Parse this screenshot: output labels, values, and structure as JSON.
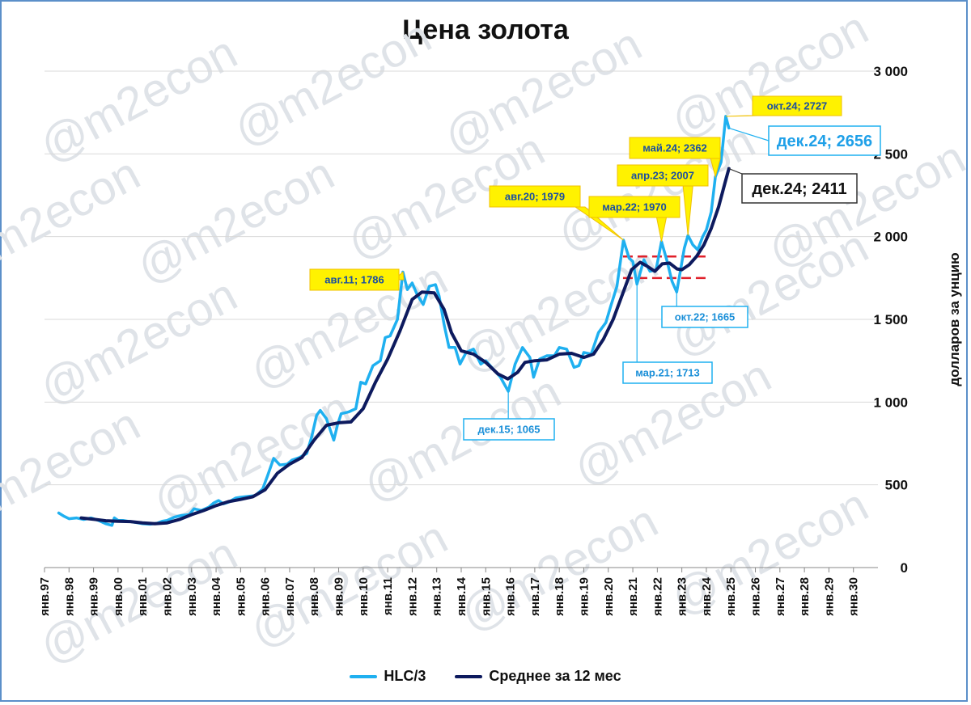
{
  "chart_data": {
    "type": "line",
    "title": "Цена золота",
    "ylabel": "долларов за унцию",
    "ylim": [
      0,
      3000
    ],
    "yticks": [
      {
        "value": 0,
        "label": "0"
      },
      {
        "value": 500,
        "label": "500"
      },
      {
        "value": 1000,
        "label": "1 000"
      },
      {
        "value": 1500,
        "label": "1 500"
      },
      {
        "value": 2000,
        "label": "2 000"
      },
      {
        "value": 2500,
        "label": "2 500"
      },
      {
        "value": 3000,
        "label": "3 000"
      }
    ],
    "xticks": [
      "янв.97",
      "янв.98",
      "янв.99",
      "янв.00",
      "янв.01",
      "янв.02",
      "янв.03",
      "янв.04",
      "янв.05",
      "янв.06",
      "янв.07",
      "янв.08",
      "янв.09",
      "янв.10",
      "янв.11",
      "янв.12",
      "янв.13",
      "янв.14",
      "янв.15",
      "янв.16",
      "янв.17",
      "янв.18",
      "янв.19",
      "янв.20",
      "янв.21",
      "янв.22",
      "янв.23",
      "янв.24",
      "янв.25",
      "янв.26",
      "янв.27",
      "янв.28",
      "янв.29",
      "янв.30"
    ],
    "grid": true,
    "legend_position": "bottom",
    "series": [
      {
        "name": "HLC/3",
        "color": "#1fb0f0",
        "points": [
          [
            1997.58,
            330
          ],
          [
            1997.8,
            310
          ],
          [
            1998.0,
            295
          ],
          [
            1998.3,
            300
          ],
          [
            1998.6,
            290
          ],
          [
            1998.9,
            300
          ],
          [
            1999.2,
            285
          ],
          [
            1999.5,
            265
          ],
          [
            1999.75,
            255
          ],
          [
            1999.85,
            300
          ],
          [
            2000.0,
            285
          ],
          [
            2000.2,
            285
          ],
          [
            2000.4,
            280
          ],
          [
            2000.6,
            275
          ],
          [
            2000.8,
            270
          ],
          [
            2001.0,
            265
          ],
          [
            2001.3,
            262
          ],
          [
            2001.6,
            268
          ],
          [
            2001.8,
            280
          ],
          [
            2002.0,
            285
          ],
          [
            2002.3,
            305
          ],
          [
            2002.6,
            315
          ],
          [
            2002.9,
            320
          ],
          [
            2003.1,
            355
          ],
          [
            2003.4,
            345
          ],
          [
            2003.7,
            365
          ],
          [
            2003.9,
            390
          ],
          [
            2004.1,
            405
          ],
          [
            2004.3,
            385
          ],
          [
            2004.5,
            395
          ],
          [
            2004.8,
            420
          ],
          [
            2005.0,
            425
          ],
          [
            2005.3,
            430
          ],
          [
            2005.6,
            435
          ],
          [
            2005.9,
            475
          ],
          [
            2006.1,
            555
          ],
          [
            2006.35,
            660
          ],
          [
            2006.6,
            620
          ],
          [
            2006.9,
            625
          ],
          [
            2007.1,
            650
          ],
          [
            2007.4,
            665
          ],
          [
            2007.7,
            690
          ],
          [
            2007.9,
            790
          ],
          [
            2008.1,
            920
          ],
          [
            2008.25,
            950
          ],
          [
            2008.5,
            900
          ],
          [
            2008.8,
            770
          ],
          [
            2008.95,
            860
          ],
          [
            2009.1,
            930
          ],
          [
            2009.4,
            940
          ],
          [
            2009.7,
            960
          ],
          [
            2009.9,
            1120
          ],
          [
            2010.1,
            1110
          ],
          [
            2010.4,
            1220
          ],
          [
            2010.7,
            1250
          ],
          [
            2010.9,
            1390
          ],
          [
            2011.1,
            1400
          ],
          [
            2011.4,
            1500
          ],
          [
            2011.62,
            1786
          ],
          [
            2011.8,
            1680
          ],
          [
            2012.0,
            1720
          ],
          [
            2012.2,
            1650
          ],
          [
            2012.45,
            1590
          ],
          [
            2012.7,
            1700
          ],
          [
            2012.95,
            1710
          ],
          [
            2013.1,
            1640
          ],
          [
            2013.3,
            1470
          ],
          [
            2013.5,
            1330
          ],
          [
            2013.75,
            1330
          ],
          [
            2013.95,
            1230
          ],
          [
            2014.2,
            1300
          ],
          [
            2014.5,
            1320
          ],
          [
            2014.8,
            1230
          ],
          [
            2015.0,
            1250
          ],
          [
            2015.3,
            1200
          ],
          [
            2015.6,
            1150
          ],
          [
            2015.92,
            1065
          ],
          [
            2016.2,
            1230
          ],
          [
            2016.5,
            1330
          ],
          [
            2016.8,
            1270
          ],
          [
            2016.95,
            1150
          ],
          [
            2017.2,
            1260
          ],
          [
            2017.5,
            1280
          ],
          [
            2017.8,
            1280
          ],
          [
            2018.0,
            1330
          ],
          [
            2018.3,
            1320
          ],
          [
            2018.6,
            1210
          ],
          [
            2018.8,
            1220
          ],
          [
            2019.0,
            1300
          ],
          [
            2019.3,
            1290
          ],
          [
            2019.6,
            1420
          ],
          [
            2019.9,
            1480
          ],
          [
            2020.1,
            1580
          ],
          [
            2020.35,
            1700
          ],
          [
            2020.62,
            1979
          ],
          [
            2020.85,
            1870
          ],
          [
            2021.0,
            1850
          ],
          [
            2021.17,
            1713
          ],
          [
            2021.45,
            1860
          ],
          [
            2021.7,
            1790
          ],
          [
            2021.95,
            1800
          ],
          [
            2022.17,
            1970
          ],
          [
            2022.4,
            1850
          ],
          [
            2022.6,
            1730
          ],
          [
            2022.79,
            1665
          ],
          [
            2022.95,
            1800
          ],
          [
            2023.1,
            1930
          ],
          [
            2023.25,
            2007
          ],
          [
            2023.45,
            1950
          ],
          [
            2023.65,
            1920
          ],
          [
            2023.85,
            2000
          ],
          [
            2024.0,
            2040
          ],
          [
            2024.2,
            2150
          ],
          [
            2024.37,
            2362
          ],
          [
            2024.6,
            2450
          ],
          [
            2024.79,
            2727
          ],
          [
            2024.92,
            2656
          ]
        ]
      },
      {
        "name": "Среднее за 12 мес",
        "color": "#0d1a5e",
        "points": [
          [
            1998.5,
            300
          ],
          [
            1999.0,
            292
          ],
          [
            1999.5,
            283
          ],
          [
            2000.0,
            280
          ],
          [
            2000.5,
            278
          ],
          [
            2001.0,
            270
          ],
          [
            2001.5,
            265
          ],
          [
            2002.0,
            270
          ],
          [
            2002.5,
            290
          ],
          [
            2003.0,
            320
          ],
          [
            2003.5,
            345
          ],
          [
            2004.0,
            375
          ],
          [
            2004.5,
            398
          ],
          [
            2005.0,
            412
          ],
          [
            2005.5,
            428
          ],
          [
            2006.0,
            470
          ],
          [
            2006.5,
            570
          ],
          [
            2007.0,
            625
          ],
          [
            2007.5,
            665
          ],
          [
            2008.0,
            770
          ],
          [
            2008.5,
            860
          ],
          [
            2009.0,
            875
          ],
          [
            2009.5,
            880
          ],
          [
            2010.0,
            960
          ],
          [
            2010.5,
            1120
          ],
          [
            2011.0,
            1260
          ],
          [
            2011.5,
            1430
          ],
          [
            2012.0,
            1620
          ],
          [
            2012.4,
            1665
          ],
          [
            2012.9,
            1660
          ],
          [
            2013.3,
            1560
          ],
          [
            2013.6,
            1420
          ],
          [
            2014.0,
            1310
          ],
          [
            2014.5,
            1290
          ],
          [
            2015.0,
            1240
          ],
          [
            2015.5,
            1170
          ],
          [
            2015.9,
            1140
          ],
          [
            2016.3,
            1180
          ],
          [
            2016.6,
            1240
          ],
          [
            2017.0,
            1250
          ],
          [
            2017.5,
            1255
          ],
          [
            2018.0,
            1290
          ],
          [
            2018.5,
            1295
          ],
          [
            2019.0,
            1270
          ],
          [
            2019.4,
            1290
          ],
          [
            2019.8,
            1380
          ],
          [
            2020.2,
            1500
          ],
          [
            2020.6,
            1660
          ],
          [
            2020.95,
            1800
          ],
          [
            2021.3,
            1845
          ],
          [
            2021.6,
            1820
          ],
          [
            2021.9,
            1790
          ],
          [
            2022.2,
            1835
          ],
          [
            2022.5,
            1840
          ],
          [
            2022.8,
            1805
          ],
          [
            2023.0,
            1800
          ],
          [
            2023.3,
            1830
          ],
          [
            2023.6,
            1880
          ],
          [
            2023.9,
            1950
          ],
          [
            2024.2,
            2050
          ],
          [
            2024.5,
            2180
          ],
          [
            2024.75,
            2320
          ],
          [
            2024.92,
            2411
          ]
        ]
      }
    ],
    "reference_lines": [
      {
        "value": 1880,
        "from": 2020.6,
        "to": 2024.0,
        "color": "#e0202a",
        "style": "dashed"
      },
      {
        "value": 1750,
        "from": 2020.6,
        "to": 2024.0,
        "color": "#e0202a",
        "style": "dashed"
      }
    ],
    "annotations": [
      {
        "text": "авг.11; 1786",
        "x": 2011.62,
        "y": 1786,
        "style": "yellow"
      },
      {
        "text": "авг.20; 1979",
        "x": 2020.62,
        "y": 1979,
        "style": "yellow"
      },
      {
        "text": "мар.22; 1970",
        "x": 2022.17,
        "y": 1970,
        "style": "yellow"
      },
      {
        "text": "апр.23; 2007",
        "x": 2023.25,
        "y": 2007,
        "style": "yellow"
      },
      {
        "text": "май.24; 2362",
        "x": 2024.37,
        "y": 2362,
        "style": "yellow"
      },
      {
        "text": "окт.24; 2727",
        "x": 2024.79,
        "y": 2727,
        "style": "yellow"
      },
      {
        "text": "дек.24; 2656",
        "x": 2024.92,
        "y": 2656,
        "style": "blue-large"
      },
      {
        "text": "дек.24; 2411",
        "x": 2024.92,
        "y": 2411,
        "style": "dark-large"
      },
      {
        "text": "дек.15; 1065",
        "x": 2015.92,
        "y": 1065,
        "style": "blue"
      },
      {
        "text": "окт.22; 1665",
        "x": 2022.79,
        "y": 1665,
        "style": "blue"
      },
      {
        "text": "мар.21; 1713",
        "x": 2021.17,
        "y": 1713,
        "style": "blue"
      }
    ],
    "watermark": "@m2econ"
  }
}
